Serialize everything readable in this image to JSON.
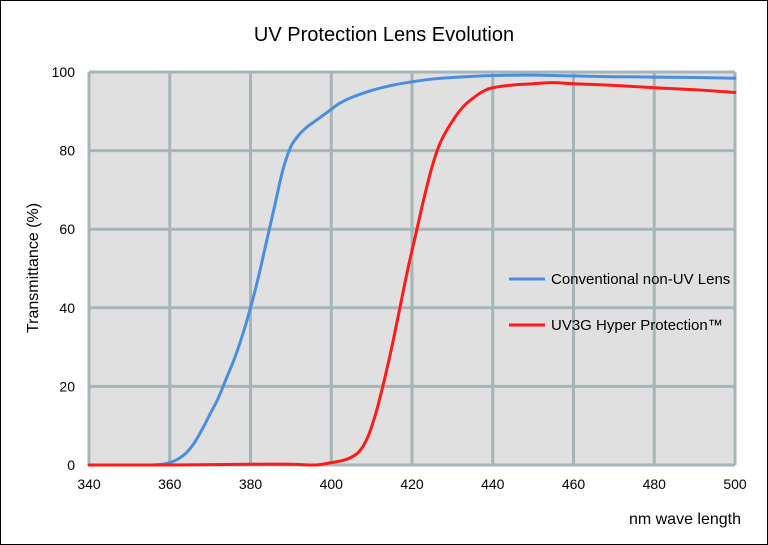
{
  "chart_data": {
    "type": "line",
    "title": "UV Protection Lens Evolution",
    "xlabel": "nm wave length",
    "ylabel": "Transmittance (%)",
    "xlim": [
      340,
      500
    ],
    "ylim": [
      0,
      100
    ],
    "x_ticks": [
      340,
      360,
      380,
      400,
      420,
      440,
      460,
      480,
      500
    ],
    "y_ticks": [
      0,
      20,
      40,
      60,
      80,
      100
    ],
    "grid": true,
    "legend_position": "right",
    "plot_background": "#e0e0e0",
    "grid_color": "#a6b5b8",
    "series": [
      {
        "name": "Conventional non-UV Lens",
        "color": "#4a8ee0",
        "points": [
          [
            340,
            0
          ],
          [
            355,
            0
          ],
          [
            358,
            0.2
          ],
          [
            360,
            0.6
          ],
          [
            362,
            1.5
          ],
          [
            364,
            3
          ],
          [
            366,
            5.5
          ],
          [
            368,
            9
          ],
          [
            370,
            13
          ],
          [
            372,
            17
          ],
          [
            374,
            22
          ],
          [
            376,
            27
          ],
          [
            378,
            33
          ],
          [
            380,
            40
          ],
          [
            382,
            48
          ],
          [
            384,
            57
          ],
          [
            386,
            66
          ],
          [
            388,
            75
          ],
          [
            390,
            81
          ],
          [
            392,
            84
          ],
          [
            394,
            86
          ],
          [
            396,
            87.5
          ],
          [
            398,
            89
          ],
          [
            400,
            90.5
          ],
          [
            402,
            92
          ],
          [
            405,
            93.5
          ],
          [
            410,
            95.3
          ],
          [
            415,
            96.6
          ],
          [
            420,
            97.5
          ],
          [
            425,
            98.2
          ],
          [
            430,
            98.6
          ],
          [
            440,
            99.1
          ],
          [
            450,
            99.2
          ],
          [
            460,
            99
          ],
          [
            470,
            98.8
          ],
          [
            480,
            98.7
          ],
          [
            490,
            98.6
          ],
          [
            500,
            98.4
          ]
        ]
      },
      {
        "name": "UV3G Hyper Protection™",
        "color": "#ff1a1a",
        "points": [
          [
            340,
            0
          ],
          [
            360,
            0
          ],
          [
            380,
            0.2
          ],
          [
            390,
            0.2
          ],
          [
            396,
            0
          ],
          [
            400,
            0.6
          ],
          [
            403,
            1.2
          ],
          [
            405,
            2
          ],
          [
            407,
            3.5
          ],
          [
            409,
            7
          ],
          [
            411,
            13
          ],
          [
            413,
            21
          ],
          [
            415,
            30
          ],
          [
            417,
            40
          ],
          [
            419,
            50
          ],
          [
            421,
            59
          ],
          [
            423,
            68
          ],
          [
            425,
            76
          ],
          [
            427,
            82
          ],
          [
            430,
            87.5
          ],
          [
            433,
            91.5
          ],
          [
            436,
            94
          ],
          [
            438,
            95.3
          ],
          [
            440,
            96
          ],
          [
            445,
            96.7
          ],
          [
            450,
            97
          ],
          [
            455,
            97.3
          ],
          [
            460,
            97
          ],
          [
            470,
            96.6
          ],
          [
            480,
            96
          ],
          [
            490,
            95.5
          ],
          [
            500,
            94.8
          ]
        ]
      }
    ]
  }
}
